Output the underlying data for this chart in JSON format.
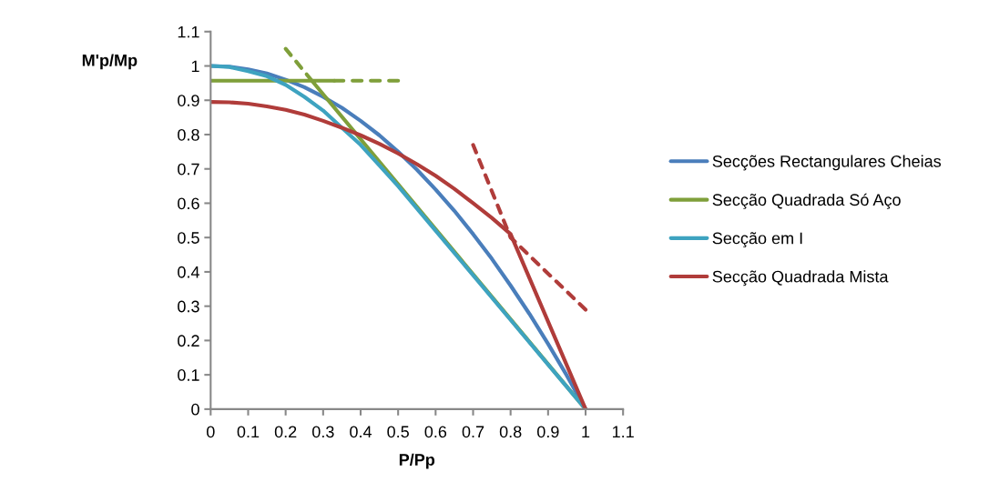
{
  "chart_data": {
    "type": "line",
    "xlabel": "P/Pp",
    "ylabel": "M'p/Mp",
    "xlim": [
      0,
      1.1
    ],
    "ylim": [
      0,
      1.1
    ],
    "xticks": [
      0,
      0.1,
      0.2,
      0.3,
      0.4,
      0.5,
      0.6,
      0.7,
      0.8,
      0.9,
      1,
      1.1
    ],
    "yticks": [
      0,
      0.1,
      0.2,
      0.3,
      0.4,
      0.5,
      0.6,
      0.7,
      0.8,
      0.9,
      1,
      1.1
    ],
    "grid": false,
    "legend": "right",
    "marker": "none",
    "series": [
      {
        "name": "Secções Rectangulares Cheias",
        "color": "#4a7ebb",
        "x": [
          0,
          0.05,
          0.1,
          0.15,
          0.2,
          0.25,
          0.3,
          0.35,
          0.4,
          0.45,
          0.5,
          0.55,
          0.6,
          0.65,
          0.7,
          0.75,
          0.8,
          0.85,
          0.9,
          0.95,
          1
        ],
        "values": [
          1,
          0.998,
          0.99,
          0.978,
          0.96,
          0.938,
          0.91,
          0.878,
          0.84,
          0.798,
          0.75,
          0.698,
          0.64,
          0.578,
          0.51,
          0.438,
          0.36,
          0.278,
          0.19,
          0.098,
          0
        ]
      },
      {
        "name": "Secção Quadrada Só Aço",
        "color": "#7f9f3a",
        "x": [
          0,
          0.33,
          0.3,
          0.27,
          1
        ],
        "values": [
          0.957,
          0.957,
          null,
          0.957,
          0
        ]
      },
      {
        "name": "Secção em I",
        "color": "#3ea3c0",
        "x": [
          0,
          0.05,
          0.1,
          0.15,
          0.2,
          0.25,
          0.3,
          0.35,
          0.4,
          0.45,
          0.5,
          0.6,
          0.7,
          0.8,
          0.9,
          1
        ],
        "values": [
          1,
          0.997,
          0.985,
          0.97,
          0.945,
          0.91,
          0.87,
          0.82,
          0.77,
          0.71,
          0.65,
          0.52,
          0.39,
          0.26,
          0.13,
          0
        ]
      },
      {
        "name": "Secção Quadrada Mista",
        "color": "#b03c3a",
        "x": [
          0,
          0.05,
          0.1,
          0.15,
          0.2,
          0.25,
          0.3,
          0.35,
          0.4,
          0.45,
          0.5,
          0.55,
          0.6,
          0.65,
          0.7,
          0.75,
          0.8,
          1
        ],
        "values": [
          0.895,
          0.894,
          0.89,
          0.882,
          0.872,
          0.858,
          0.84,
          0.82,
          0.798,
          0.773,
          0.745,
          0.714,
          0.68,
          0.642,
          0.6,
          0.557,
          0.51,
          0
        ]
      },
      {
        "color": "#7f9f3a",
        "line_style": "dashed",
        "x": [
          0.33,
          0.5
        ],
        "values": [
          0.957,
          0.957
        ]
      },
      {
        "color": "#7f9f3a",
        "line_style": "dashed",
        "x": [
          0.2,
          0.27
        ],
        "values": [
          1.05,
          0.957
        ]
      },
      {
        "color": "#b03c3a",
        "line_style": "dashed",
        "x": [
          0.7,
          0.8,
          1
        ],
        "values": [
          0.77,
          0.5,
          0.29
        ]
      }
    ]
  }
}
